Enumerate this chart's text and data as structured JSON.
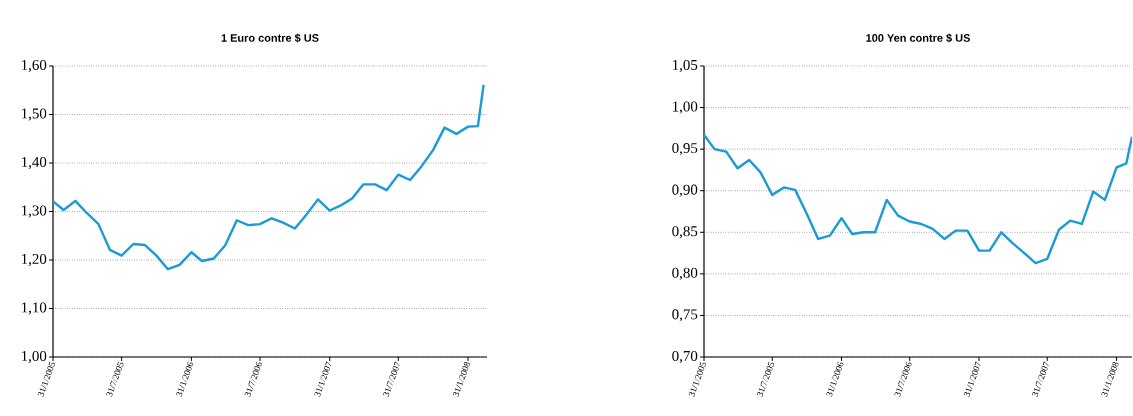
{
  "chart_data": [
    {
      "type": "line",
      "title": "1 Euro contre $ US",
      "color": "#1a9ad6",
      "grid": "y",
      "line_style": "solid",
      "marker": "none",
      "x": [
        "2005-01-31",
        "2005-02-28",
        "2005-03-31",
        "2005-04-30",
        "2005-05-31",
        "2005-06-30",
        "2005-07-31",
        "2005-08-31",
        "2005-09-30",
        "2005-10-31",
        "2005-11-30",
        "2005-12-31",
        "2006-01-31",
        "2006-02-28",
        "2006-03-31",
        "2006-04-30",
        "2006-05-31",
        "2006-06-30",
        "2006-07-31",
        "2006-08-31",
        "2006-09-30",
        "2006-10-31",
        "2006-11-30",
        "2006-12-31",
        "2007-01-31",
        "2007-02-28",
        "2007-03-31",
        "2007-04-30",
        "2007-05-31",
        "2007-06-30",
        "2007-07-31",
        "2007-08-31",
        "2007-09-30",
        "2007-10-31",
        "2007-11-30",
        "2007-12-31",
        "2008-01-31",
        "2008-02-26",
        "2008-03-12"
      ],
      "values": [
        1.321,
        1.303,
        1.322,
        1.297,
        1.274,
        1.221,
        1.209,
        1.233,
        1.231,
        1.209,
        1.181,
        1.19,
        1.216,
        1.198,
        1.203,
        1.23,
        1.282,
        1.272,
        1.274,
        1.286,
        1.277,
        1.265,
        1.293,
        1.325,
        1.302,
        1.312,
        1.327,
        1.356,
        1.356,
        1.344,
        1.376,
        1.365,
        1.393,
        1.427,
        1.473,
        1.46,
        1.475,
        1.476,
        1.561
      ],
      "xlim": [
        "2005-01-31",
        "2008-03-21"
      ],
      "xticks": [
        {
          "value": "2005-01-31",
          "label": "31/1/2005"
        },
        {
          "value": "2005-07-31",
          "label": "31/7/2005"
        },
        {
          "value": "2006-01-31",
          "label": "31/1/2006"
        },
        {
          "value": "2006-07-31",
          "label": "31/7/2006"
        },
        {
          "value": "2007-01-31",
          "label": "31/1/2007"
        },
        {
          "value": "2007-07-31",
          "label": "31/7/2007"
        },
        {
          "value": "2008-01-31",
          "label": "31/1/2008"
        }
      ],
      "ylim": [
        1.0,
        1.6
      ],
      "yticks": [
        {
          "value": 1.0,
          "label": "1,00"
        },
        {
          "value": 1.1,
          "label": "1,10"
        },
        {
          "value": 1.2,
          "label": "1,20"
        },
        {
          "value": 1.3,
          "label": "1,30"
        },
        {
          "value": 1.4,
          "label": "1,40"
        },
        {
          "value": 1.5,
          "label": "1,50"
        },
        {
          "value": 1.6,
          "label": "1,60"
        }
      ]
    },
    {
      "type": "line",
      "title": "100 Yen contre $ US",
      "color": "#1a9ad6",
      "grid": "y",
      "line_style": "solid",
      "marker": "none",
      "x": [
        "2005-01-31",
        "2005-02-28",
        "2005-03-31",
        "2005-04-30",
        "2005-05-31",
        "2005-06-30",
        "2005-07-31",
        "2005-08-31",
        "2005-09-30",
        "2005-10-31",
        "2005-11-30",
        "2005-12-31",
        "2006-01-31",
        "2006-02-28",
        "2006-03-31",
        "2006-04-30",
        "2006-05-31",
        "2006-06-30",
        "2006-07-31",
        "2006-08-31",
        "2006-09-30",
        "2006-10-31",
        "2006-11-30",
        "2006-12-31",
        "2007-01-31",
        "2007-02-28",
        "2007-03-31",
        "2007-04-30",
        "2007-05-31",
        "2007-06-30",
        "2007-07-31",
        "2007-08-31",
        "2007-09-30",
        "2007-10-31",
        "2007-11-30",
        "2007-12-31",
        "2008-01-31",
        "2008-02-26",
        "2008-03-12"
      ],
      "values": [
        0.967,
        0.95,
        0.947,
        0.927,
        0.937,
        0.922,
        0.895,
        0.904,
        0.901,
        0.872,
        0.842,
        0.846,
        0.867,
        0.848,
        0.85,
        0.85,
        0.889,
        0.87,
        0.863,
        0.86,
        0.854,
        0.842,
        0.852,
        0.852,
        0.828,
        0.828,
        0.85,
        0.837,
        0.825,
        0.813,
        0.818,
        0.853,
        0.864,
        0.86,
        0.899,
        0.889,
        0.928,
        0.933,
        0.965
      ],
      "xlim": [
        "2005-01-31",
        "2008-03-12"
      ],
      "xticks": [
        {
          "value": "2005-01-31",
          "label": "31/1/2005"
        },
        {
          "value": "2005-07-31",
          "label": "31/7/2005"
        },
        {
          "value": "2006-01-31",
          "label": "31/1/2006"
        },
        {
          "value": "2006-07-31",
          "label": "31/7/2006"
        },
        {
          "value": "2007-01-31",
          "label": "31/1/2007"
        },
        {
          "value": "2007-07-31",
          "label": "31/7/2007"
        },
        {
          "value": "2008-01-31",
          "label": "31/1/2008"
        }
      ],
      "ylim": [
        0.7,
        1.05
      ],
      "yticks": [
        {
          "value": 0.7,
          "label": "0,70"
        },
        {
          "value": 0.75,
          "label": "0,75"
        },
        {
          "value": 0.8,
          "label": "0,80"
        },
        {
          "value": 0.85,
          "label": "0,85"
        },
        {
          "value": 0.9,
          "label": "0,90"
        },
        {
          "value": 0.95,
          "label": "0,95"
        },
        {
          "value": 1.0,
          "label": "1,00"
        },
        {
          "value": 1.05,
          "label": "1,05"
        }
      ]
    }
  ]
}
